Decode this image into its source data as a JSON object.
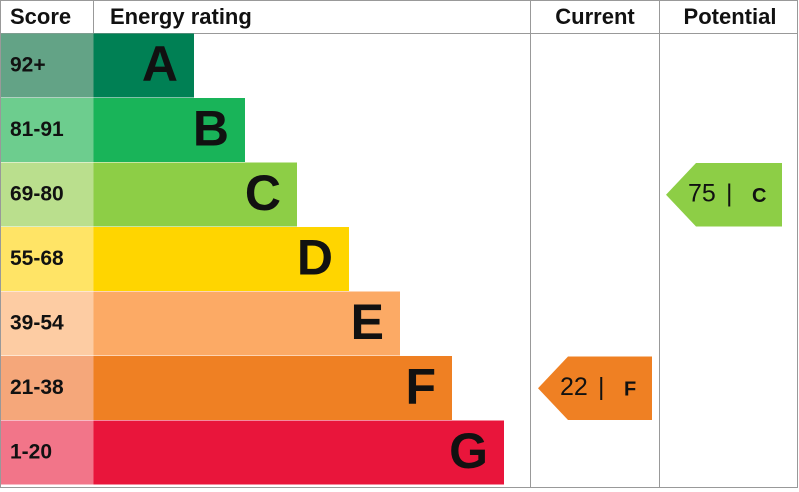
{
  "header": {
    "score": "Score",
    "rating": "Energy rating",
    "current": "Current",
    "potential": "Potential"
  },
  "bands": [
    {
      "score": "92+",
      "letter": "A",
      "color": "#008054",
      "score_color": "#63a386"
    },
    {
      "score": "81-91",
      "letter": "B",
      "color": "#19b459",
      "score_color": "#6dcd8e"
    },
    {
      "score": "69-80",
      "letter": "C",
      "color": "#8dce46",
      "score_color": "#badf8d"
    },
    {
      "score": "55-68",
      "letter": "D",
      "color": "#ffd500",
      "score_color": "#ffe466"
    },
    {
      "score": "39-54",
      "letter": "E",
      "color": "#fcaa65",
      "score_color": "#fdcca3"
    },
    {
      "score": "21-38",
      "letter": "F",
      "color": "#ef8023",
      "score_color": "#f5a77a"
    },
    {
      "score": "1-20",
      "letter": "G",
      "color": "#e9153b",
      "score_color": "#f27589"
    }
  ],
  "separator": "|",
  "current": {
    "value": 22,
    "band": "F"
  },
  "potential": {
    "value": 75,
    "band": "C"
  }
}
